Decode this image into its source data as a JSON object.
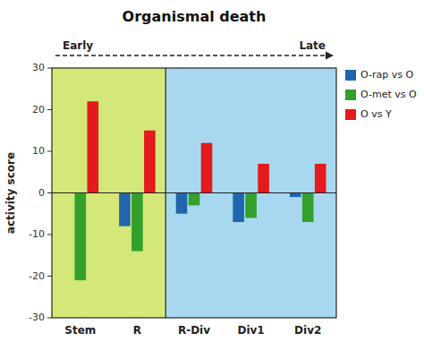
{
  "chart_data": {
    "type": "bar",
    "title": "Organismal death",
    "ylabel": "activity score",
    "categories": [
      "Stem",
      "R",
      "R-Div",
      "Div1",
      "Div2"
    ],
    "series": [
      {
        "name": "O-rap vs O",
        "color": "#2166ac",
        "values": [
          0,
          -8,
          -5,
          -7,
          -1
        ]
      },
      {
        "name": "O-met vs O",
        "color": "#33a02c",
        "values": [
          -21,
          -14,
          -3,
          -6,
          -7
        ]
      },
      {
        "name": "O vs Y",
        "color": "#e41a1c",
        "values": [
          22,
          15,
          12,
          7,
          7
        ]
      }
    ],
    "annotations": [
      {
        "text": "Early",
        "categories": [
          "Stem",
          "R"
        ],
        "color": "#d4e87a"
      },
      {
        "text": "Late",
        "categories": [
          "R-Div",
          "Div1",
          "Div2"
        ],
        "color": "#a8d8f0"
      }
    ],
    "ylim": [
      -30,
      30
    ],
    "yticks": [
      -30,
      -20,
      -10,
      0,
      10,
      20,
      30
    ],
    "grid": false,
    "legend": "right"
  }
}
